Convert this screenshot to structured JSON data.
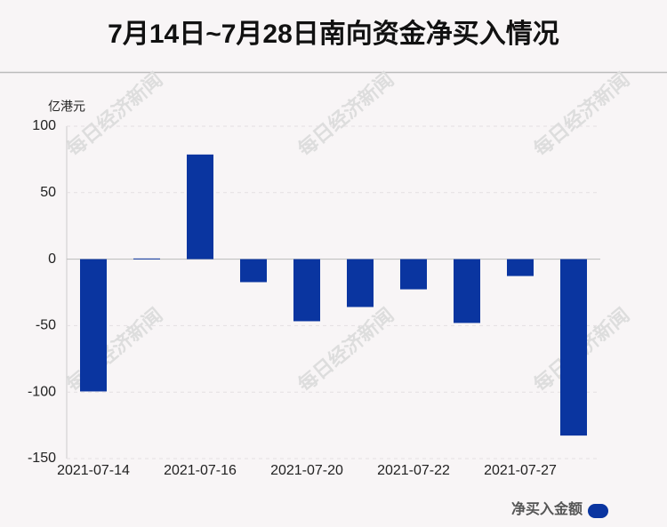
{
  "chart_data": {
    "type": "bar",
    "title": "7月14日~7月28日南向资金净买入情况",
    "y_label": "亿港元",
    "categories": [
      "2021-07-14",
      null,
      "2021-07-16",
      null,
      "2021-07-20",
      null,
      "2021-07-22",
      null,
      "2021-07-27",
      null
    ],
    "series": [
      {
        "name": "净买入金额",
        "color": "#0a35a0",
        "values": [
          -99.5,
          0.5,
          78.7,
          -17.3,
          -46.7,
          -36,
          -22.7,
          -48,
          -12.7,
          -132.7
        ]
      }
    ],
    "ylim": [
      -150,
      100
    ],
    "yticks": [
      -150,
      -100,
      -50,
      0,
      50,
      100
    ],
    "grid": true,
    "legend": "bottom-right",
    "watermark": "每日经济新闻"
  }
}
